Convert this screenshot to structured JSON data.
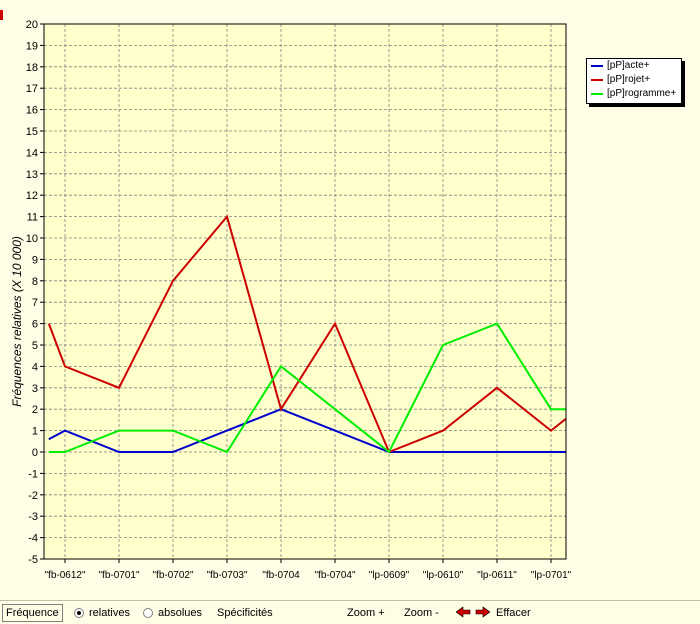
{
  "chart_data": {
    "type": "line",
    "categories": [
      "\"fb-0612\"",
      "\"fb-0701\"",
      "\"fb-0702\"",
      "\"fb-0703\"",
      "\"fb-0704",
      "\"fb-0704\"",
      "\"lp-0609\"",
      "\"lp-0610\"",
      "\"lp-0611\"",
      "\"lp-0701\""
    ],
    "x": [
      -0.3,
      0,
      1,
      2,
      3,
      4,
      5,
      6,
      7,
      8,
      9,
      9.3
    ],
    "series": [
      {
        "name": "[pP]acte+",
        "color": "#0000cc",
        "values": [
          0.6,
          1,
          0,
          0,
          1,
          2,
          1,
          0,
          0,
          0,
          0,
          0
        ]
      },
      {
        "name": "[pP]rojet+",
        "color": "#cc0000",
        "values": [
          6,
          4,
          3,
          8,
          11,
          2,
          6,
          0,
          1,
          3,
          1,
          1.6
        ]
      },
      {
        "name": "[pP]rogramme+",
        "color": "#00ee00",
        "values": [
          0,
          0,
          1,
          1,
          0,
          4,
          2,
          0,
          5,
          6,
          2,
          2
        ]
      }
    ],
    "ylabel": "Fréquences relatives (X 10 000)",
    "ylim": [
      -5,
      20
    ],
    "yticks": [
      -5,
      -4,
      -3,
      -2,
      -1,
      0,
      1,
      2,
      3,
      4,
      5,
      6,
      7,
      8,
      9,
      10,
      11,
      12,
      13,
      14,
      15,
      16,
      17,
      18,
      19,
      20
    ],
    "grid": true,
    "legend": "top-right",
    "background": "#ffffcc"
  },
  "toolbar": {
    "frequence": "Fréquence",
    "relatives": "relatives",
    "absolues": "absolues",
    "specificites": "Spécificités",
    "zoom_in": "Zoom +",
    "zoom_out": "Zoom -",
    "effacer": "Effacer"
  }
}
